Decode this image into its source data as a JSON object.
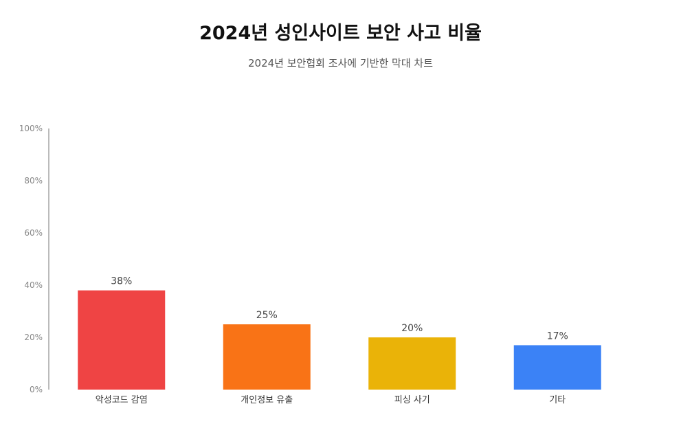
{
  "chart_data": {
    "type": "bar",
    "title": "2024년 성인사이트 보안 사고 비율",
    "subtitle": "2024년 보안협회 조사에 기반한 막대 차트",
    "categories": [
      "악성코드 감염",
      "개인정보 유출",
      "피싱 사기",
      "기타"
    ],
    "values": [
      38,
      25,
      20,
      17
    ],
    "data_labels": [
      "38%",
      "25%",
      "20%",
      "17%"
    ],
    "colors": [
      "#ef4444",
      "#f97316",
      "#eab308",
      "#3b82f6"
    ],
    "ylim": [
      0,
      100
    ],
    "yticks": [
      0,
      20,
      40,
      60,
      80,
      100
    ],
    "ytick_labels": [
      "0%",
      "20%",
      "40%",
      "60%",
      "80%",
      "100%"
    ],
    "xlabel": "",
    "ylabel": "",
    "grid": false,
    "legend": "none"
  }
}
